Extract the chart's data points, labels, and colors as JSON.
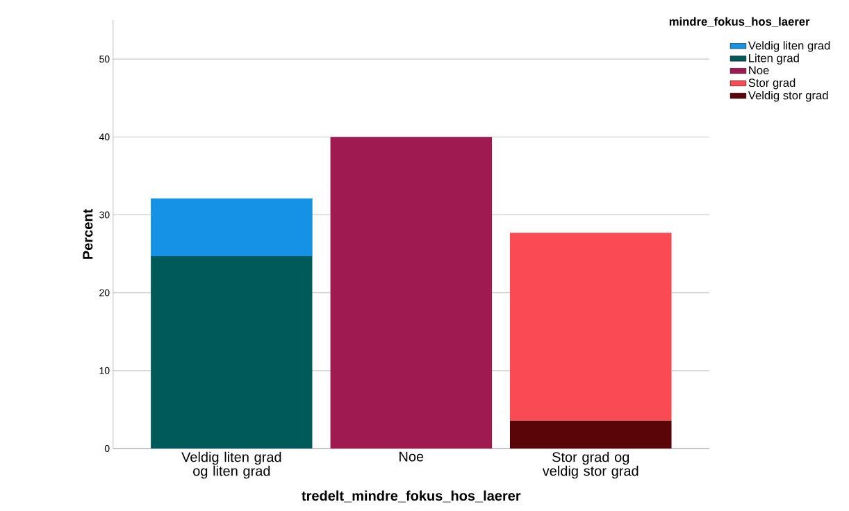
{
  "chart_data": {
    "type": "bar",
    "stacked": true,
    "xlabel": "tredelt_mindre_fokus_hos_laerer",
    "ylabel": "Percent",
    "legend_title": "mindre_fokus_hos_laerer",
    "categories": [
      "Veldig liten grad og liten grad",
      "Noe",
      "Stor grad og veldig stor grad"
    ],
    "series": [
      {
        "name": "Veldig stor grad",
        "color": "#5a0508",
        "values": [
          null,
          null,
          3.6
        ]
      },
      {
        "name": "Stor grad",
        "color": "#fa4b55",
        "values": [
          null,
          null,
          24.1
        ]
      },
      {
        "name": "Noe",
        "color": "#9e1a50",
        "values": [
          null,
          40.0,
          null
        ]
      },
      {
        "name": "Liten grad",
        "color": "#005a5a",
        "values": [
          24.7,
          null,
          null
        ]
      },
      {
        "name": "Veldig liten grad",
        "color": "#1592e6",
        "values": [
          7.4,
          null,
          null
        ]
      }
    ],
    "ylim": [
      0,
      55
    ],
    "yticks": [
      0,
      10,
      20,
      30,
      40,
      50
    ],
    "grid": "y",
    "legend": "right"
  }
}
